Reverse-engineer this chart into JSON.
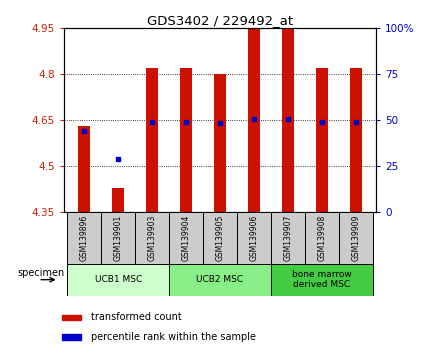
{
  "title": "GDS3402 / 229492_at",
  "samples": [
    "GSM139896",
    "GSM139901",
    "GSM139903",
    "GSM139904",
    "GSM139905",
    "GSM139906",
    "GSM139907",
    "GSM139908",
    "GSM139909"
  ],
  "bar_values": [
    4.63,
    4.43,
    4.82,
    4.82,
    4.8,
    4.95,
    4.95,
    4.82,
    4.82
  ],
  "percentile_values": [
    4.615,
    4.525,
    4.645,
    4.645,
    4.64,
    4.655,
    4.655,
    4.645,
    4.645
  ],
  "ylim_left": [
    4.35,
    4.95
  ],
  "ylim_right": [
    0,
    100
  ],
  "yticks_left": [
    4.35,
    4.5,
    4.65,
    4.8,
    4.95
  ],
  "yticks_right": [
    0,
    25,
    50,
    75,
    100
  ],
  "ytick_labels_left": [
    "4.35",
    "4.5",
    "4.65",
    "4.8",
    "4.95"
  ],
  "ytick_labels_right": [
    "0",
    "25",
    "50",
    "75",
    "100%"
  ],
  "bar_color": "#cc1100",
  "percentile_color": "#0000cc",
  "bar_bottom": 4.35,
  "groups": [
    {
      "label": "UCB1 MSC",
      "samples": [
        0,
        1,
        2
      ],
      "color": "#ccffcc"
    },
    {
      "label": "UCB2 MSC",
      "samples": [
        3,
        4,
        5
      ],
      "color": "#88ee88"
    },
    {
      "label": "bone marrow\nderived MSC",
      "samples": [
        6,
        7,
        8
      ],
      "color": "#44cc44"
    }
  ],
  "specimen_label": "specimen",
  "legend_bar_label": "transformed count",
  "legend_percentile_label": "percentile rank within the sample",
  "tick_label_color_left": "#cc2200",
  "tick_label_color_right": "#0000cc",
  "box_color": "#cccccc",
  "bar_width": 0.35
}
